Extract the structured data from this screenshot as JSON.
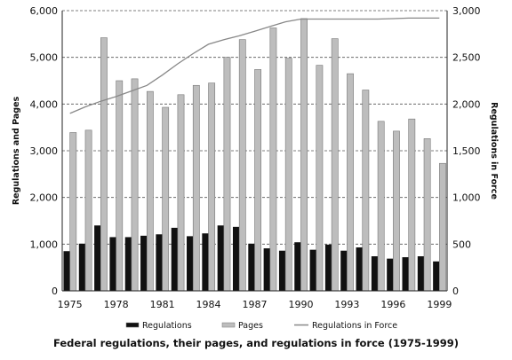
{
  "caption": "Federal regulations, their pages, and regulations in force (1975-1999)",
  "chart_data": {
    "type": "bar",
    "title": "",
    "ylabel": "Regulations and Pages",
    "y2label": "Regulations in Force",
    "ylim": [
      0,
      6000
    ],
    "y2lim": [
      0,
      3000
    ],
    "yticks": [
      "0",
      "1,000",
      "2,000",
      "3,000",
      "4,000",
      "5,000",
      "6,000"
    ],
    "y2ticks": [
      "0",
      "500",
      "1,000",
      "1,500",
      "2,000",
      "2,500",
      "3,000"
    ],
    "xticks": [
      "1975",
      "1978",
      "1981",
      "1984",
      "1987",
      "1990",
      "1993",
      "1996",
      "1999"
    ],
    "grid": "horizontal dashed",
    "legend_position": "bottom",
    "categories": [
      "1975",
      "1976",
      "1977",
      "1978",
      "1979",
      "1980",
      "1981",
      "1982",
      "1983",
      "1984",
      "1985",
      "1986",
      "1987",
      "1988",
      "1989",
      "1990",
      "1991",
      "1992",
      "1993",
      "1994",
      "1995",
      "1996",
      "1997",
      "1998",
      "1999"
    ],
    "series": [
      {
        "name": "Regulations",
        "type": "bar",
        "axis": "left",
        "color": "#111111",
        "values": [
          850,
          1010,
          1400,
          1150,
          1150,
          1180,
          1210,
          1350,
          1170,
          1230,
          1400,
          1370,
          1010,
          910,
          860,
          1040,
          880,
          990,
          860,
          930,
          740,
          690,
          720,
          740,
          630
        ]
      },
      {
        "name": "Pages",
        "type": "bar",
        "axis": "left",
        "color": "#bdbdbd",
        "values": [
          3390,
          3440,
          5420,
          4500,
          4540,
          4270,
          3930,
          4200,
          4400,
          4450,
          5000,
          5380,
          4740,
          5630,
          4980,
          5830,
          4830,
          5400,
          4650,
          4300,
          3630,
          3420,
          3680,
          3260,
          2730
        ]
      },
      {
        "name": "Regulations in Force",
        "type": "line",
        "axis": "right",
        "color": "#888888",
        "values": [
          1900,
          1970,
          2030,
          2080,
          2140,
          2200,
          2310,
          2430,
          2540,
          2640,
          2690,
          2730,
          2780,
          2830,
          2880,
          2910,
          2910,
          2910,
          2910,
          2910,
          2910,
          2915,
          2920,
          2920,
          2920
        ]
      }
    ]
  }
}
